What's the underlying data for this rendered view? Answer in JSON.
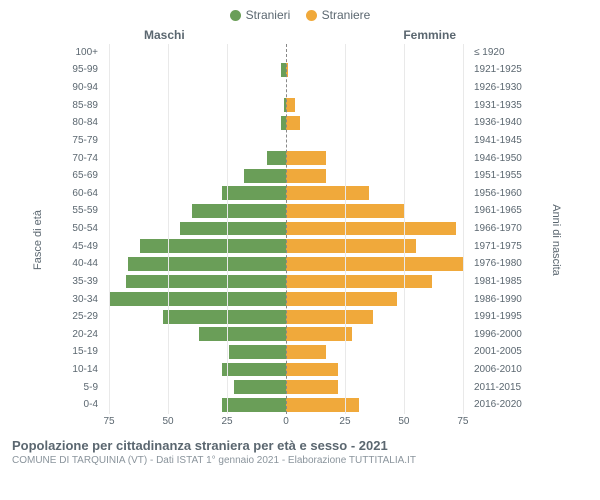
{
  "chart": {
    "type": "population-pyramid",
    "legend": {
      "male": {
        "label": "Stranieri",
        "color": "#6a9e58"
      },
      "female": {
        "label": "Straniere",
        "color": "#f0a93b"
      }
    },
    "headers": {
      "male": "Maschi",
      "female": "Femmine"
    },
    "y_left": {
      "title": "Fasce di età"
    },
    "y_right": {
      "title": "Anni di nascita"
    },
    "x": {
      "max": 78,
      "ticks": [
        75,
        50,
        25,
        0,
        25,
        50,
        75
      ]
    },
    "bar_height_pct": 78,
    "grid_color": "#e9e9e9",
    "centerline_color": "#888888",
    "background_color": "#ffffff",
    "label_color": "#5b6770",
    "rows": [
      {
        "age": "100+",
        "birth": "≤ 1920",
        "m": 0,
        "f": 0
      },
      {
        "age": "95-99",
        "birth": "1921-1925",
        "m": 2,
        "f": 1
      },
      {
        "age": "90-94",
        "birth": "1926-1930",
        "m": 0,
        "f": 0
      },
      {
        "age": "85-89",
        "birth": "1931-1935",
        "m": 1,
        "f": 4
      },
      {
        "age": "80-84",
        "birth": "1936-1940",
        "m": 2,
        "f": 6
      },
      {
        "age": "75-79",
        "birth": "1941-1945",
        "m": 0,
        "f": 0
      },
      {
        "age": "70-74",
        "birth": "1946-1950",
        "m": 8,
        "f": 17
      },
      {
        "age": "65-69",
        "birth": "1951-1955",
        "m": 18,
        "f": 17
      },
      {
        "age": "60-64",
        "birth": "1956-1960",
        "m": 27,
        "f": 35
      },
      {
        "age": "55-59",
        "birth": "1961-1965",
        "m": 40,
        "f": 50
      },
      {
        "age": "50-54",
        "birth": "1966-1970",
        "m": 45,
        "f": 72
      },
      {
        "age": "45-49",
        "birth": "1971-1975",
        "m": 62,
        "f": 55
      },
      {
        "age": "40-44",
        "birth": "1976-1980",
        "m": 67,
        "f": 75
      },
      {
        "age": "35-39",
        "birth": "1981-1985",
        "m": 68,
        "f": 62
      },
      {
        "age": "30-34",
        "birth": "1986-1990",
        "m": 75,
        "f": 47
      },
      {
        "age": "25-29",
        "birth": "1991-1995",
        "m": 52,
        "f": 37
      },
      {
        "age": "20-24",
        "birth": "1996-2000",
        "m": 37,
        "f": 28
      },
      {
        "age": "15-19",
        "birth": "2001-2005",
        "m": 24,
        "f": 17
      },
      {
        "age": "10-14",
        "birth": "2006-2010",
        "m": 27,
        "f": 22
      },
      {
        "age": "5-9",
        "birth": "2011-2015",
        "m": 22,
        "f": 22
      },
      {
        "age": "0-4",
        "birth": "2016-2020",
        "m": 27,
        "f": 31
      }
    ]
  },
  "footer": {
    "title": "Popolazione per cittadinanza straniera per età e sesso - 2021",
    "subtitle": "COMUNE DI TARQUINIA (VT) - Dati ISTAT 1° gennaio 2021 - Elaborazione TUTTITALIA.IT"
  }
}
